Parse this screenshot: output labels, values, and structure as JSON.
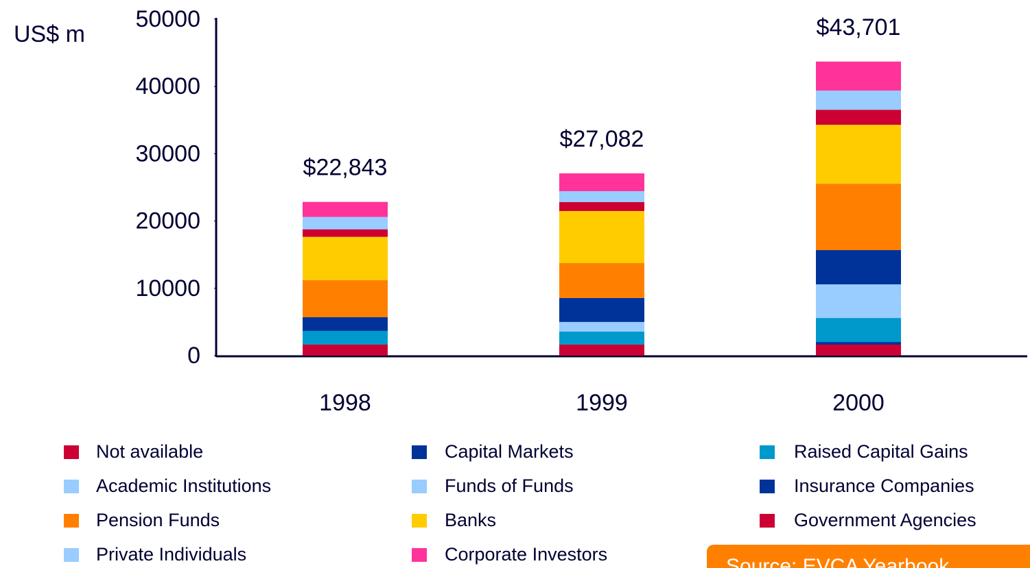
{
  "chart_data": {
    "type": "stacked_bar",
    "y_label": "US$ m",
    "categories": [
      "1998",
      "1999",
      "2000"
    ],
    "total_labels": [
      "$22,843",
      "$27,082",
      "$43,701"
    ],
    "ylim": [
      0,
      50000
    ],
    "yticks": [
      0,
      10000,
      20000,
      30000,
      40000,
      50000
    ],
    "source": "Source: EVCA Yearbook",
    "series": [
      {
        "name": "Not available",
        "color": "#cc0033",
        "values": [
          1630,
          1630,
          1630
        ]
      },
      {
        "name": "Capital Markets",
        "color": "#003399",
        "values": [
          0,
          0,
          400
        ]
      },
      {
        "name": "Raised Capital Gains",
        "color": "#0099cc",
        "values": [
          2040,
          1940,
          3560
        ]
      },
      {
        "name": "Academic Institutions",
        "color": "#99ccff",
        "values": [
          0,
          0,
          2500
        ]
      },
      {
        "name": "Funds of Funds",
        "color": "#99ccff",
        "values": [
          0,
          1430,
          2500
        ]
      },
      {
        "name": "Insurance Companies",
        "color": "#003399",
        "values": [
          2040,
          3560,
          5090
        ]
      },
      {
        "name": "Pension Funds",
        "color": "#ff8000",
        "values": [
          5500,
          5190,
          9870
        ]
      },
      {
        "name": "Banks",
        "color": "#ffcc00",
        "values": [
          6443,
          7740,
          8750
        ]
      },
      {
        "name": "Government Agencies",
        "color": "#cc0033",
        "values": [
          1120,
          1320,
          2240
        ]
      },
      {
        "name": "Private Individuals",
        "color": "#99ccff",
        "values": [
          1830,
          1630,
          2850
        ]
      },
      {
        "name": "Corporate Investors",
        "color": "#ff3399",
        "values": [
          2240,
          2642,
          4311
        ]
      }
    ]
  }
}
